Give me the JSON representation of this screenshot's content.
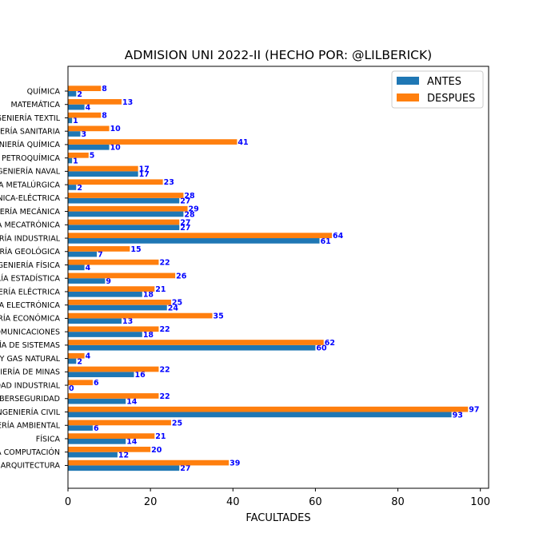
{
  "chart_data": {
    "type": "bar",
    "orientation": "horizontal",
    "title": "ADMISION UNI 2022-II (HECHO POR: @LILBERICK)",
    "xlabel": "FACULTADES",
    "ylabel": "",
    "xlim": [
      0,
      102
    ],
    "xticks": [
      "0",
      "20",
      "40",
      "60",
      "80",
      "100"
    ],
    "grid": false,
    "legend_position": "top-right",
    "categories": [
      "QUÍMICA",
      "MATEMÁTICA",
      "INGENIERÍA TEXTIL",
      "INGENIERÍA SANITARIA",
      "INGENIERÍA QUÍMICA",
      "INGENIERÍA PETROQUÍMICA",
      "INGENIERÍA NAVAL",
      "INGENIERÍA METALÚRGICA",
      "INGENIERÍA MECÁNICA-ELÉCTRICA",
      "INGENIERÍA MECÁNICA",
      "INGENIERÍA MECATRÓNICA",
      "INGENIERÍA INDUSTRIAL",
      "INGENIERÍA GEOLÓGICA",
      "INGENIERÍA FÍSICA",
      "INGENIERÍA ESTADÍSTICA",
      "INGENIERÍA ELÉCTRICA",
      "INGENIERÍA ELECTRÓNICA",
      "INGENIERÍA ECONÓMICA",
      "INGENIERÍA DE TELECOMUNICACIONES",
      "INGENIERÍA DE SISTEMAS",
      "INGENIERÍA DE PETRÓLEO Y GAS NATURAL",
      "INGENIERÍA DE MINAS",
      "INGENIERÍA DE HIGIENE Y SEGURIDAD INDUSTRIAL",
      "INGENIERÍA DE CIBERSEGURIDAD",
      "INGENIERÍA CIVIL",
      "INGENIERÍA AMBIENTAL",
      "FÍSICA",
      "CIENCIA DE LA COMPUTACIÓN",
      "ARQUITECTURA"
    ],
    "series": [
      {
        "name": "ANTES",
        "color": "#1f77b4",
        "values": [
          2,
          4,
          1,
          3,
          10,
          1,
          17,
          2,
          27,
          28,
          27,
          61,
          7,
          4,
          9,
          18,
          24,
          13,
          18,
          60,
          2,
          16,
          0,
          14,
          93,
          6,
          14,
          12,
          27
        ]
      },
      {
        "name": "DESPUES",
        "color": "#ff7f0e",
        "values": [
          8,
          13,
          8,
          10,
          41,
          5,
          17,
          23,
          28,
          29,
          27,
          64,
          15,
          22,
          26,
          21,
          25,
          35,
          22,
          62,
          4,
          22,
          6,
          22,
          97,
          25,
          21,
          20,
          39
        ]
      }
    ],
    "data_label_color": "#0000ff"
  }
}
